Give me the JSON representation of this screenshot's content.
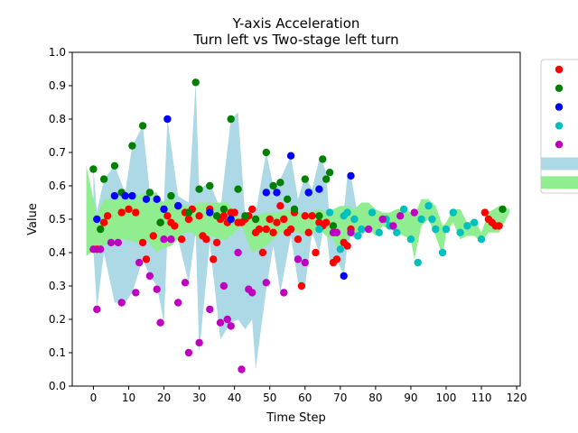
{
  "chart_data": {
    "type": "scatter",
    "title": "Y-axis Acceleration",
    "subtitle": "Turn left vs Two-stage left turn",
    "xlabel": "Time Step",
    "ylabel": "Value",
    "xlim": [
      -6,
      121
    ],
    "ylim": [
      0.0,
      1.0
    ],
    "xticks": [
      0,
      10,
      20,
      30,
      40,
      50,
      60,
      70,
      80,
      90,
      100,
      110,
      120
    ],
    "xtick_labels": [
      "0",
      "10",
      "20",
      "30",
      "40",
      "50",
      "60",
      "70",
      "80",
      "90",
      "100",
      "110",
      "120"
    ],
    "yticks": [
      0.0,
      0.1,
      0.2,
      0.3,
      0.4,
      0.5,
      0.6,
      0.7,
      0.8,
      0.9,
      1.0
    ],
    "ytick_labels": [
      "0.0",
      "0.1",
      "0.2",
      "0.3",
      "0.4",
      "0.5",
      "0.6",
      "0.7",
      "0.8",
      "0.9",
      "1.0"
    ],
    "grid": false,
    "legend_position": "right, outside plot area",
    "series": [
      {
        "color": "#ff0000",
        "x": [
          1,
          3,
          4,
          8,
          10,
          12,
          14,
          15,
          17,
          19,
          21,
          22,
          23,
          25,
          26,
          27,
          28,
          30,
          31,
          32,
          33,
          34,
          35,
          36,
          37,
          38,
          39,
          40,
          41,
          42,
          43,
          44,
          45,
          46,
          47,
          48,
          49,
          50,
          51,
          52,
          53,
          54,
          55,
          56,
          57,
          58,
          59,
          60,
          61,
          62,
          63,
          64,
          65,
          66,
          68,
          69,
          71,
          72,
          73,
          111,
          112,
          113,
          114,
          115
        ],
        "y": [
          0.41,
          0.49,
          0.51,
          0.52,
          0.53,
          0.52,
          0.43,
          0.38,
          0.45,
          0.49,
          0.51,
          0.49,
          0.48,
          0.44,
          0.52,
          0.5,
          0.53,
          0.51,
          0.45,
          0.44,
          0.53,
          0.38,
          0.43,
          0.5,
          0.51,
          0.49,
          0.52,
          0.52,
          0.49,
          0.49,
          0.5,
          0.51,
          0.53,
          0.46,
          0.47,
          0.4,
          0.47,
          0.5,
          0.46,
          0.49,
          0.54,
          0.5,
          0.46,
          0.47,
          0.52,
          0.44,
          0.3,
          0.51,
          0.46,
          0.51,
          0.4,
          0.49,
          0.48,
          0.49,
          0.37,
          0.38,
          0.43,
          0.42,
          0.47,
          0.52,
          0.5,
          0.49,
          0.48,
          0.48
        ]
      },
      {
        "color": "#008000",
        "x": [
          0,
          2,
          3,
          6,
          8,
          11,
          14,
          16,
          19,
          22,
          24,
          27,
          29,
          30,
          33,
          35,
          37,
          39,
          41,
          43,
          46,
          49,
          51,
          53,
          55,
          57,
          60,
          61,
          64,
          65,
          66,
          67,
          68,
          116
        ],
        "y": [
          0.65,
          0.47,
          0.62,
          0.66,
          0.58,
          0.72,
          0.78,
          0.58,
          0.49,
          0.57,
          0.54,
          0.52,
          0.91,
          0.59,
          0.6,
          0.51,
          0.53,
          0.8,
          0.59,
          0.51,
          0.5,
          0.7,
          0.6,
          0.61,
          0.56,
          0.53,
          0.62,
          0.58,
          0.51,
          0.68,
          0.62,
          0.64,
          0.48,
          0.53
        ]
      },
      {
        "color": "#0000ff",
        "x": [
          1,
          6,
          9,
          11,
          15,
          18,
          20,
          21,
          24,
          33,
          39,
          49,
          52,
          56,
          61,
          64,
          71,
          73
        ],
        "y": [
          0.5,
          0.57,
          0.57,
          0.57,
          0.56,
          0.56,
          0.53,
          0.8,
          0.54,
          0.52,
          0.5,
          0.58,
          0.58,
          0.69,
          0.58,
          0.59,
          0.33,
          0.63
        ]
      },
      {
        "color": "#00bfbf",
        "x": [
          64,
          67,
          68,
          70,
          71,
          72,
          74,
          75,
          76,
          79,
          81,
          83,
          84,
          86,
          88,
          90,
          92,
          93,
          95,
          96,
          97,
          99,
          100,
          102,
          104,
          106,
          108,
          110
        ],
        "y": [
          0.47,
          0.52,
          0.46,
          0.41,
          0.51,
          0.52,
          0.5,
          0.45,
          0.47,
          0.52,
          0.46,
          0.5,
          0.48,
          0.46,
          0.53,
          0.44,
          0.37,
          0.5,
          0.54,
          0.5,
          0.47,
          0.4,
          0.47,
          0.52,
          0.46,
          0.48,
          0.49,
          0.44
        ]
      },
      {
        "color": "#bf00bf",
        "x": [
          0,
          1,
          2,
          5,
          7,
          8,
          12,
          13,
          16,
          18,
          19,
          20,
          22,
          24,
          26,
          27,
          30,
          33,
          36,
          37,
          38,
          39,
          41,
          42,
          44,
          45,
          49,
          54,
          58,
          60,
          68,
          69,
          73,
          78,
          82,
          85,
          87,
          91
        ],
        "y": [
          0.41,
          0.23,
          0.41,
          0.43,
          0.43,
          0.25,
          0.28,
          0.37,
          0.33,
          0.29,
          0.19,
          0.44,
          0.44,
          0.25,
          0.31,
          0.1,
          0.13,
          0.23,
          0.19,
          0.3,
          0.2,
          0.18,
          0.4,
          0.05,
          0.29,
          0.28,
          0.31,
          0.28,
          0.38,
          0.37,
          0.46,
          0.46,
          0.46,
          0.47,
          0.5,
          0.48,
          0.51,
          0.52
        ]
      }
    ],
    "bands": [
      {
        "color": "#add8e6",
        "x": [
          0,
          1,
          3,
          6,
          9,
          11,
          14,
          16,
          18,
          20,
          21,
          24,
          27,
          29,
          30,
          33,
          36,
          39,
          41,
          43,
          45,
          46,
          49,
          51,
          53,
          56,
          58,
          60,
          62,
          64,
          65,
          66,
          67,
          68,
          69,
          71,
          72,
          73,
          75,
          77
        ],
        "lower": [
          0.41,
          0.23,
          0.4,
          0.25,
          0.25,
          0.28,
          0.38,
          0.33,
          0.3,
          0.19,
          0.45,
          0.44,
          0.31,
          0.46,
          0.1,
          0.43,
          0.14,
          0.19,
          0.2,
          0.17,
          0.2,
          0.05,
          0.29,
          0.42,
          0.28,
          0.45,
          0.31,
          0.3,
          0.46,
          0.4,
          0.46,
          0.47,
          0.37,
          0.37,
          0.38,
          0.33,
          0.42,
          0.45,
          0.44,
          0.46
        ],
        "upper": [
          0.66,
          0.52,
          0.62,
          0.66,
          0.58,
          0.72,
          0.78,
          0.58,
          0.57,
          0.55,
          0.8,
          0.57,
          0.55,
          0.91,
          0.59,
          0.61,
          0.53,
          0.8,
          0.82,
          0.51,
          0.53,
          0.52,
          0.7,
          0.6,
          0.62,
          0.69,
          0.56,
          0.63,
          0.59,
          0.68,
          0.67,
          0.64,
          0.49,
          0.52,
          0.49,
          0.52,
          0.63,
          0.63,
          0.51,
          0.49
        ]
      },
      {
        "color": "#90ee90",
        "x": [
          -2,
          1,
          3,
          6,
          9,
          12,
          15,
          18,
          19,
          22,
          24,
          26,
          28,
          30,
          33,
          36,
          38,
          42,
          45,
          49,
          52,
          55,
          58,
          61,
          64,
          66,
          68,
          70,
          72,
          74,
          76,
          78,
          80,
          82,
          84,
          86,
          88,
          90,
          91,
          93,
          95,
          97,
          99,
          100,
          102,
          104,
          106,
          108,
          110,
          112,
          115,
          118
        ],
        "lower": [
          0.39,
          0.41,
          0.42,
          0.44,
          0.44,
          0.43,
          0.44,
          0.4,
          0.41,
          0.42,
          0.44,
          0.46,
          0.46,
          0.44,
          0.45,
          0.44,
          0.44,
          0.48,
          0.4,
          0.42,
          0.45,
          0.47,
          0.46,
          0.45,
          0.47,
          0.45,
          0.44,
          0.4,
          0.44,
          0.46,
          0.46,
          0.47,
          0.45,
          0.48,
          0.47,
          0.46,
          0.45,
          0.44,
          0.38,
          0.48,
          0.5,
          0.45,
          0.39,
          0.46,
          0.49,
          0.44,
          0.45,
          0.45,
          0.43,
          0.46,
          0.46,
          0.52
        ],
        "upper": [
          0.66,
          0.51,
          0.56,
          0.56,
          0.57,
          0.57,
          0.58,
          0.58,
          0.55,
          0.56,
          0.55,
          0.54,
          0.54,
          0.55,
          0.55,
          0.55,
          0.55,
          0.5,
          0.51,
          0.52,
          0.52,
          0.53,
          0.52,
          0.52,
          0.53,
          0.52,
          0.53,
          0.54,
          0.54,
          0.53,
          0.55,
          0.55,
          0.53,
          0.52,
          0.52,
          0.53,
          0.53,
          0.52,
          0.51,
          0.56,
          0.56,
          0.54,
          0.48,
          0.49,
          0.53,
          0.53,
          0.49,
          0.5,
          0.46,
          0.52,
          0.54,
          0.53
        ]
      }
    ],
    "legend": {
      "entries": [
        {
          "kind": "marker",
          "color": "#ff0000",
          "label": ""
        },
        {
          "kind": "marker",
          "color": "#008000",
          "label": ""
        },
        {
          "kind": "marker",
          "color": "#0000ff",
          "label": ""
        },
        {
          "kind": "marker",
          "color": "#00bfbf",
          "label": ""
        },
        {
          "kind": "marker",
          "color": "#bf00bf",
          "label": ""
        },
        {
          "kind": "patch",
          "color": "#add8e6",
          "label": ""
        },
        {
          "kind": "patch",
          "color": "#90ee90",
          "label": ""
        }
      ]
    }
  }
}
